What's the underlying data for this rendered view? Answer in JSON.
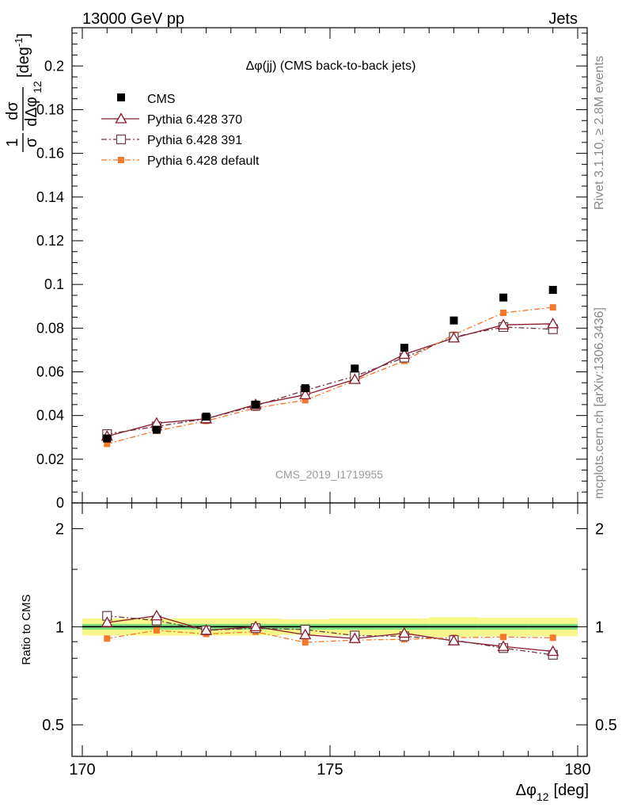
{
  "header": {
    "left": "13000 GeV pp",
    "right": "Jets"
  },
  "side_labels": {
    "rivet": "Rivet 3.1.10, ≥ 2.8M events",
    "mcplots": "mcplots.cern.ch [arXiv:1306.3436]"
  },
  "chart_data": {
    "type": "scatter",
    "title": "Δφ(jj) (CMS back-to-back jets)",
    "watermark": "CMS_2019_I1719955",
    "ylabel": {
      "frac_num": "1",
      "frac_den": "σ",
      "d_num": "dσ",
      "d_den": "dΔφ",
      "d_den_sub": "12",
      "unit_open": "[deg",
      "unit_sup": "-1",
      "unit_close": "]"
    },
    "xlabel": {
      "main": "Δφ",
      "sub": "12",
      "unit": "[deg]"
    },
    "ratio_ylabel": "Ratio to CMS",
    "xlim": [
      170,
      180
    ],
    "ylim": [
      0,
      0.2175
    ],
    "ratio_ylim": [
      0.4,
      2.4
    ],
    "ratio_log": true,
    "x_ticks": [
      "170",
      "175",
      "180"
    ],
    "y_ticks": [
      "0",
      "0.02",
      "0.04",
      "0.06",
      "0.08",
      "0.1",
      "0.12",
      "0.14",
      "0.16",
      "0.18",
      "0.2"
    ],
    "ratio_ticks": [
      "0.5",
      "1",
      "2"
    ],
    "legend_position": "top-left",
    "x": [
      170.5,
      171.5,
      172.5,
      173.5,
      174.5,
      175.5,
      176.5,
      177.5,
      178.5,
      179.5
    ],
    "series": [
      {
        "name": "CMS",
        "color": "#000000",
        "marker": "filled-square",
        "line": "none",
        "values": [
          0.0295,
          0.0335,
          0.0395,
          0.045,
          0.0525,
          0.0615,
          0.071,
          0.0835,
          0.094,
          0.0975
        ]
      },
      {
        "name": "Pythia 6.428 370",
        "color": "#8b1a2b",
        "marker": "open-triangle",
        "line": "solid",
        "values": [
          0.0305,
          0.0365,
          0.0385,
          0.045,
          0.0495,
          0.0565,
          0.068,
          0.0755,
          0.0815,
          0.082
        ]
      },
      {
        "name": "Pythia 6.428 391",
        "color": "#6b3a47",
        "marker": "open-square",
        "line": "dashdot",
        "values": [
          0.0315,
          0.035,
          0.0385,
          0.0445,
          0.0515,
          0.058,
          0.0665,
          0.076,
          0.0805,
          0.0795
        ]
      },
      {
        "name": "Pythia 6.428 default",
        "color": "#f4772a",
        "marker": "small-filled-square",
        "line": "dashdot",
        "values": [
          0.027,
          0.033,
          0.0375,
          0.0435,
          0.047,
          0.056,
          0.065,
          0.077,
          0.087,
          0.0895
        ]
      }
    ],
    "ratio_series": [
      {
        "name": "Pythia 6.428 370",
        "values": [
          1.03,
          1.08,
          0.975,
          1.0,
          0.945,
          0.92,
          0.955,
          0.905,
          0.87,
          0.84
        ]
      },
      {
        "name": "Pythia 6.428 391",
        "values": [
          1.08,
          1.045,
          0.975,
          0.99,
          0.98,
          0.94,
          0.935,
          0.91,
          0.86,
          0.82
        ]
      },
      {
        "name": "Pythia 6.428 default",
        "values": [
          0.92,
          0.975,
          0.95,
          0.965,
          0.895,
          0.91,
          0.915,
          0.925,
          0.93,
          0.925
        ]
      }
    ],
    "ratio_band": {
      "stat_color": "#7fe07f",
      "total_color": "#f7f78a",
      "stat_half": [
        0.02,
        0.02,
        0.02,
        0.02,
        0.02,
        0.02,
        0.02,
        0.02,
        0.02,
        0.02
      ],
      "total_half": [
        0.06,
        0.06,
        0.06,
        0.06,
        0.055,
        0.06,
        0.06,
        0.07,
        0.065,
        0.065
      ]
    }
  }
}
